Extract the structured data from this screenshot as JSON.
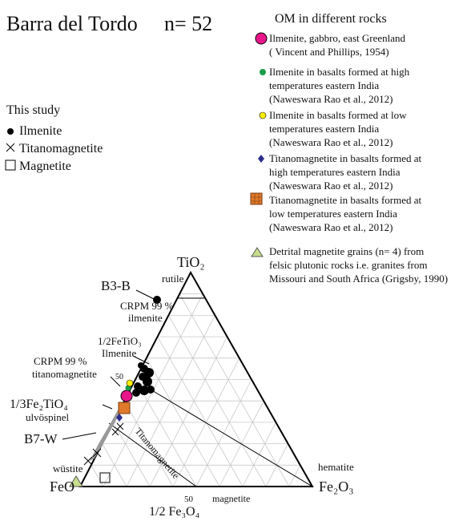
{
  "header": {
    "title": "Barra del Tordo",
    "n": "n= 52"
  },
  "this_study": {
    "title": "This study",
    "items": [
      "Ilmenite",
      "Titanomagnetite",
      "Magnetite"
    ]
  },
  "om_legend": {
    "title": "OM in different rocks",
    "items": [
      {
        "lines": [
          "Ilmenite, gabbro, east Greenland",
          "( Vincent and Phillips, 1954)"
        ]
      },
      {
        "lines": [
          "Ilmenite in basalts formed at high",
          "temperatures eastern India",
          "(Naweswara Rao et al., 2012)"
        ]
      },
      {
        "lines": [
          "Ilmenite in basalts formed at low",
          "temperatures eastern India",
          "(Naweswara Rao et al., 2012)"
        ]
      },
      {
        "lines": [
          "Titanomagnetite in basalts formed at",
          "high temperatures eastern India",
          "(Naweswara Rao et al., 2012)"
        ]
      },
      {
        "lines": [
          "Titanomagnetite in basalts formed at",
          "low temperatures eastern India",
          "(Naweswara Rao et al., 2012)"
        ]
      },
      {
        "lines": [
          "Detrital magnetite grains (n= 4) from",
          "felsic plutonic rocks i.e. granites from",
          "Missouri and South Africa  (Grigsby, 1990)"
        ]
      }
    ]
  },
  "diagram": {
    "apex": "TiO₂",
    "left": "FeO",
    "right": "Fe₂O₃",
    "bottom": "1/2 Fe₃O₄",
    "labels": {
      "rutile": "rutile",
      "b3b": "B3-B",
      "crpm1": "CRPM 99 %",
      "ilmenite": "ilmenite",
      "feti": "1/2FeTiO₃",
      "ilm2": "Ilmenite",
      "crpm2": "CRPM 99 %",
      "tmag": "titanomagnetite",
      "fe2ti": "1/3Fe₂TiO₄",
      "ulvo": "ulvöspinel",
      "b7w": "B7-W",
      "wustite": "wüstite",
      "hematite": "hematite",
      "fifty_left": "50",
      "fifty_bottom": "50",
      "magnetite": "magnetite",
      "tm_line": "Titanomagnetite"
    }
  }
}
